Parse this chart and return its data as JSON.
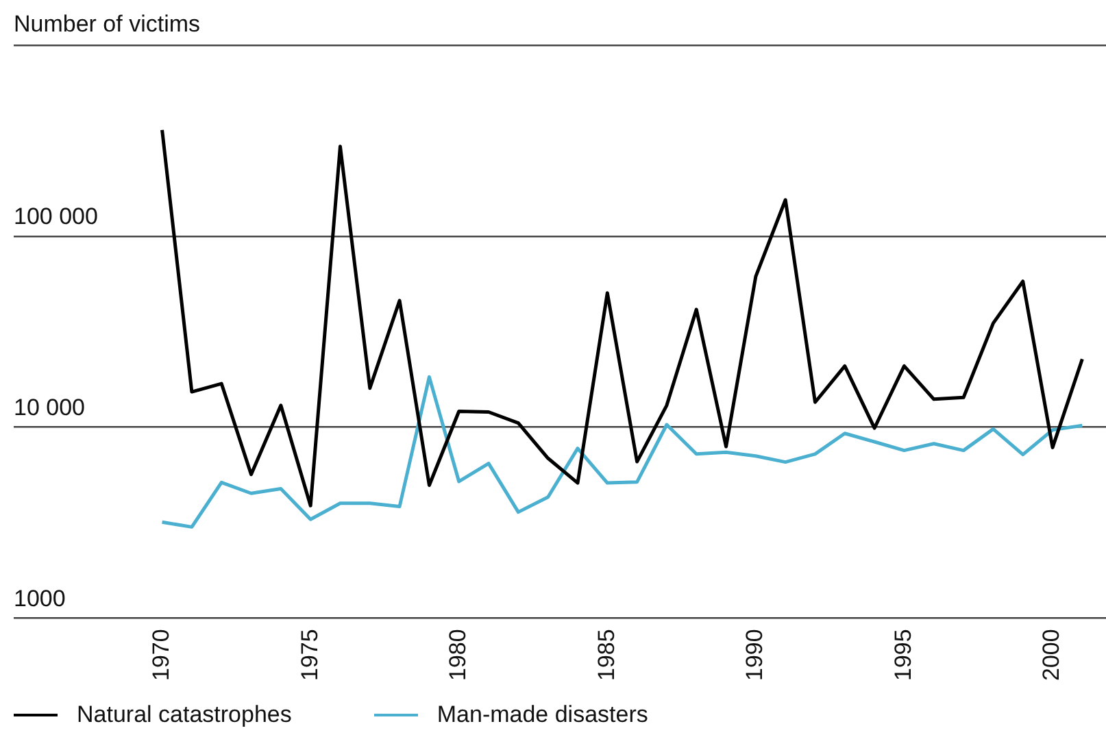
{
  "chart_data": {
    "type": "line",
    "ylabel": "Number of victims",
    "log": "y",
    "x": [
      1970,
      1971,
      1972,
      1973,
      1974,
      1975,
      1976,
      1977,
      1978,
      1979,
      1980,
      1981,
      1982,
      1983,
      1984,
      1985,
      1986,
      1987,
      1988,
      1989,
      1990,
      1991,
      1992,
      1993,
      1994,
      1995,
      1996,
      1997,
      1998,
      1999,
      2000,
      2001
    ],
    "series": [
      {
        "name": "Natural catastrophes",
        "color": "#000000",
        "values": [
          360000,
          15300,
          16900,
          5650,
          13000,
          3880,
          295000,
          16000,
          46000,
          4960,
          12100,
          12000,
          10500,
          6870,
          5100,
          50400,
          6590,
          13000,
          41300,
          7910,
          61500,
          155000,
          13500,
          20900,
          9880,
          20900,
          14000,
          14300,
          35000,
          58000,
          7820,
          22700
        ]
      },
      {
        "name": "Man-made disasters",
        "color": "#4bb0cf",
        "values": [
          3180,
          3000,
          5130,
          4500,
          4760,
          3290,
          3990,
          3990,
          3840,
          18300,
          5190,
          6450,
          3590,
          4300,
          7740,
          5100,
          5160,
          10300,
          7230,
          7390,
          7060,
          6560,
          7230,
          9270,
          8380,
          7550,
          8190,
          7550,
          9770,
          7180,
          9670,
          10200
        ]
      }
    ],
    "xlim": [
      1965,
      2001.8
    ],
    "xticks": [
      1970,
      1975,
      1980,
      1985,
      1990,
      1995,
      2000
    ],
    "ylim": [
      1000,
      1000000
    ],
    "yticks": [
      {
        "value": 1000,
        "label": "1000"
      },
      {
        "value": 10000,
        "label": "10 000"
      },
      {
        "value": 100000,
        "label": "100 000"
      },
      {
        "value": 1000000,
        "label": null
      }
    ],
    "grid": "y",
    "legend": "bottom left",
    "marker": "none",
    "line_style": "solid"
  }
}
